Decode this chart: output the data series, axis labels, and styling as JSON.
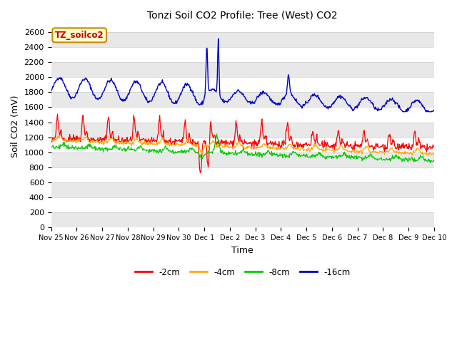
{
  "title": "Tonzi Soil CO2 Profile: Tree (West) CO2",
  "xlabel": "Time",
  "ylabel": "Soil CO2 (mV)",
  "ylim": [
    0,
    2700
  ],
  "yticks": [
    0,
    200,
    400,
    600,
    800,
    1000,
    1200,
    1400,
    1600,
    1800,
    2000,
    2200,
    2400,
    2600
  ],
  "legend_label": "TZ_soilco2",
  "series_labels": [
    "-2cm",
    "-4cm",
    "-8cm",
    "-16cm"
  ],
  "series_colors": [
    "#ff0000",
    "#ffaa00",
    "#00cc00",
    "#0000cc"
  ],
  "bg_color": "#ffffff",
  "plot_bg_color": "#ffffff",
  "grid_color": "#dddddd",
  "n_points": 720,
  "x_start": 0,
  "x_end": 15,
  "xtick_labels": [
    "Nov 25",
    "Nov 26",
    "Nov 27",
    "Nov 28",
    "Nov 29",
    "Nov 30",
    "Dec 1",
    "Dec 2",
    "Dec 3",
    "Dec 4",
    "Dec 5",
    "Dec 6",
    "Dec 7",
    "Dec 8",
    "Dec 9",
    "Dec 10"
  ],
  "xtick_positions": [
    0,
    1,
    2,
    3,
    4,
    5,
    6,
    7,
    8,
    9,
    10,
    11,
    12,
    13,
    14,
    15
  ]
}
